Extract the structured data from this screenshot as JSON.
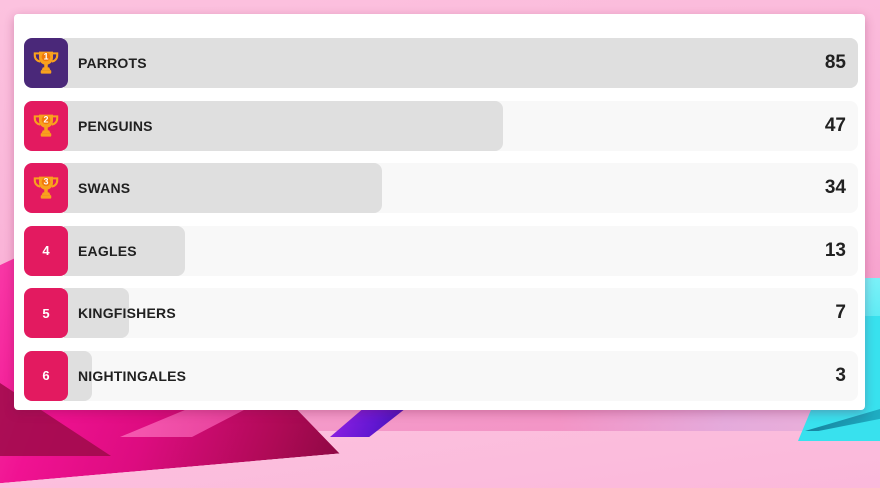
{
  "chart_data": {
    "type": "bar",
    "orientation": "horizontal",
    "title": "",
    "categories": [
      "PARROTS",
      "PENGUINS",
      "SWANS",
      "EAGLES",
      "KINGFISHERS",
      "NIGHTINGALES"
    ],
    "values": [
      85,
      47,
      34,
      13,
      7,
      3
    ],
    "xlabel": "",
    "ylabel": "",
    "xlim": [
      0,
      85
    ],
    "grid": false,
    "legend": false,
    "value_labels": "right-aligned inside row"
  },
  "leaderboard": {
    "max_score": 85,
    "rows": [
      {
        "rank": "1",
        "team": "PARROTS",
        "score": 85,
        "trophy": true,
        "badge_color": "#4A2879"
      },
      {
        "rank": "2",
        "team": "PENGUINS",
        "score": 47,
        "trophy": true,
        "badge_color": "#E31A60"
      },
      {
        "rank": "3",
        "team": "SWANS",
        "score": 34,
        "trophy": true,
        "badge_color": "#E31A60"
      },
      {
        "rank": "4",
        "team": "EAGLES",
        "score": 13,
        "trophy": false,
        "badge_color": "#E31A60"
      },
      {
        "rank": "5",
        "team": "KINGFISHERS",
        "score": 7,
        "trophy": false,
        "badge_color": "#E31A60"
      },
      {
        "rank": "6",
        "team": "NIGHTINGALES",
        "score": 3,
        "trophy": false,
        "badge_color": "#E31A60"
      }
    ]
  },
  "icons": {
    "trophy": "trophy-icon"
  },
  "colors": {
    "badge_first": "#4A2879",
    "badge_default": "#E31A60",
    "trophy_body": "#F9A11D",
    "trophy_circle": "#F2780C",
    "bar_fill": "#DFDFDF",
    "bar_track": "#F8F8F8",
    "card_background": "#FFFFFF",
    "text": "#212121",
    "wallpaper_pink": "#FAB4D8",
    "wallpaper_magenta": "#F01292",
    "wallpaper_purple": "#5A17C9",
    "wallpaper_cyan": "#38E1EE"
  }
}
